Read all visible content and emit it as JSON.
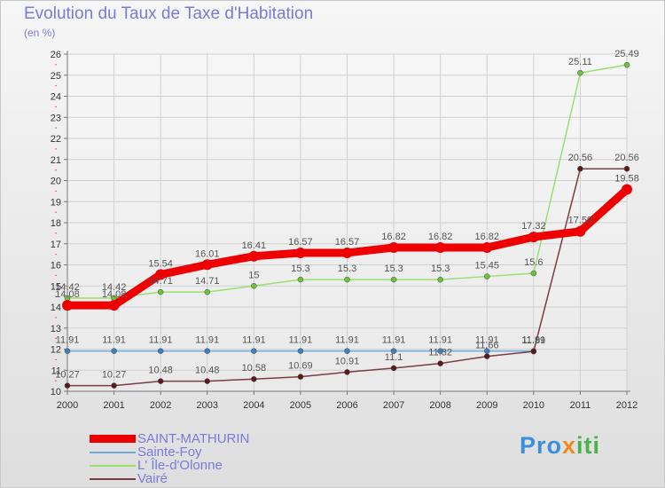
{
  "header": {
    "title": "Evolution du Taux de Taxe d'Habitation",
    "subtitle": "(en %)"
  },
  "brand": {
    "part1": "Pro",
    "part2": "x",
    "part3": "iti"
  },
  "colors": {
    "title": "#7a7ad8",
    "axis": "#777777",
    "grid": "#d0d0d0",
    "value_label": "#555555"
  },
  "chart_data": {
    "type": "line",
    "title": "Evolution du Taux de Taxe d'Habitation",
    "subtitle": "(en %)",
    "xlabel": "",
    "ylabel": "",
    "x": [
      "2000",
      "2001",
      "2002",
      "2003",
      "2004",
      "2005",
      "2006",
      "2007",
      "2008",
      "2009",
      "2010",
      "2011",
      "2012"
    ],
    "ylim": [
      10,
      26
    ],
    "yticks": [
      10,
      11,
      12,
      13,
      14,
      15,
      16,
      17,
      18,
      19,
      20,
      21,
      22,
      23,
      24,
      25,
      26
    ],
    "grid": "horizontal",
    "legend": "bottom-left",
    "series": [
      {
        "name": "SAINT-MATHURIN",
        "color": "#ee0000",
        "marker_color": "#ee0000",
        "style": "thick",
        "values": [
          14.08,
          14.08,
          15.54,
          16.01,
          16.41,
          16.57,
          16.57,
          16.82,
          16.82,
          16.82,
          17.32,
          17.59,
          19.58
        ],
        "labels": [
          "14.08",
          "14.08",
          "15.54",
          "16.01",
          "16.41",
          "16.57",
          "16.57",
          "16.82",
          "16.82",
          "16.82",
          "17.32",
          "17.59",
          "19.58"
        ]
      },
      {
        "name": "Sainte-Foy",
        "color": "#6ea8d8",
        "marker_color": "#3d80c0",
        "style": "thin",
        "values": [
          11.91,
          11.91,
          11.91,
          11.91,
          11.91,
          11.91,
          11.91,
          11.91,
          11.91,
          11.91,
          11.91,
          null,
          null
        ],
        "labels": [
          "11.91",
          "11.91",
          "11.91",
          "11.91",
          "11.91",
          "11.91",
          "11.91",
          "11.91",
          "11.91",
          "11.91",
          "11.91",
          "",
          ""
        ]
      },
      {
        "name": "L' Île-d'Olonne",
        "color": "#98e070",
        "marker_color": "#6cc13e",
        "style": "thin",
        "values": [
          14.42,
          14.42,
          14.71,
          14.71,
          15,
          15.3,
          15.3,
          15.3,
          15.3,
          15.45,
          15.6,
          25.11,
          25.49
        ],
        "labels": [
          "14.42",
          "14.42",
          "14.71",
          "14.71",
          "15",
          "15.3",
          "15.3",
          "15.3",
          "15.3",
          "15.45",
          "15.6",
          "25.11",
          "25.49"
        ]
      },
      {
        "name": "Vairé",
        "color": "#7a3d45",
        "marker_color": "#5a1a1a",
        "style": "thin",
        "values": [
          10.27,
          10.27,
          10.48,
          10.48,
          10.58,
          10.69,
          10.91,
          11.1,
          11.32,
          11.66,
          11.89,
          20.56,
          20.56
        ],
        "labels": [
          "10.27",
          "10.27",
          "10.48",
          "10.48",
          "10.58",
          "10.69",
          "10.91",
          "11.1",
          "11.32",
          "11.66",
          "11.89",
          "20.56",
          "20.56"
        ]
      }
    ]
  }
}
